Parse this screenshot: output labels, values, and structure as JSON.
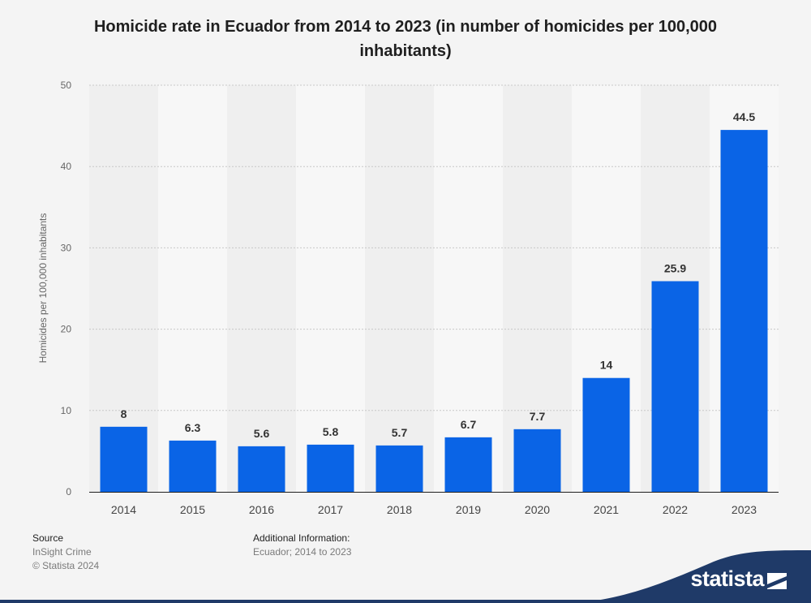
{
  "title": "Homicide rate in Ecuador from 2014 to 2023 (in number of homicides per 100,000 inhabitants)",
  "source": {
    "heading": "Source",
    "name": "InSight Crime",
    "copyright": "© Statista 2024"
  },
  "additional_info": {
    "heading": "Additional Information:",
    "text": "Ecuador; 2014 to 2023"
  },
  "brand": {
    "name": "statista"
  },
  "colors": {
    "bar": "#0a64e6",
    "background": "#f4f4f4",
    "brand_dark": "#1f3a68"
  },
  "chart_data": {
    "type": "bar",
    "title": "Homicide rate in Ecuador from 2014 to 2023 (in number of homicides per 100,000 inhabitants)",
    "xlabel": "",
    "ylabel": "Homicides per 100,000 inhabitants",
    "categories": [
      "2014",
      "2015",
      "2016",
      "2017",
      "2018",
      "2019",
      "2020",
      "2021",
      "2022",
      "2023"
    ],
    "values": [
      8,
      6.3,
      5.6,
      5.8,
      5.7,
      6.7,
      7.7,
      14,
      25.9,
      44.5
    ],
    "value_labels": [
      "8",
      "6.3",
      "5.6",
      "5.8",
      "5.7",
      "6.7",
      "7.7",
      "14",
      "25.9",
      "44.5"
    ],
    "ylim": [
      0,
      50
    ],
    "yticks": [
      0,
      10,
      20,
      30,
      40,
      50
    ],
    "grid": true,
    "legend": "none"
  }
}
